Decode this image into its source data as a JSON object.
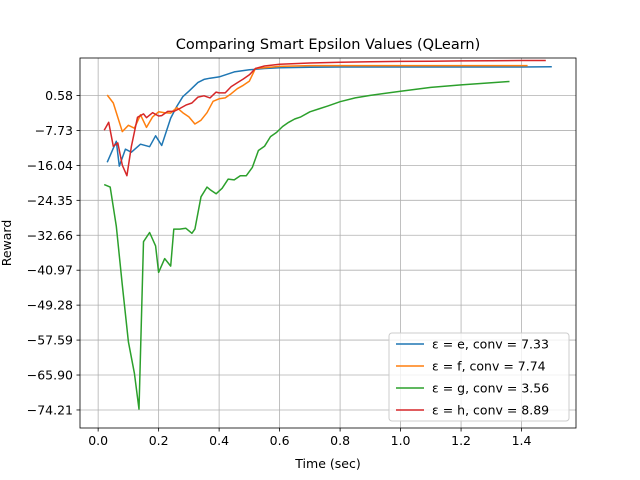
{
  "chart_data": {
    "type": "line",
    "title": "Comparing Smart Epsilon Values (QLearn)",
    "xlabel": "Time (sec)",
    "ylabel": "Reward",
    "xlim": [
      -0.06,
      1.58
    ],
    "ylim": [
      -78.5,
      9.5
    ],
    "xticks": [
      0.0,
      0.2,
      0.4,
      0.6,
      0.8,
      1.0,
      1.2,
      1.4
    ],
    "xtick_labels": [
      "0.0",
      "0.2",
      "0.4",
      "0.6",
      "0.8",
      "1.0",
      "1.2",
      "1.4"
    ],
    "yticks": [
      0.58,
      -7.73,
      -16.04,
      -24.35,
      -32.66,
      -40.97,
      -49.28,
      -57.59,
      -65.9,
      -74.21
    ],
    "ytick_labels": [
      "0.58",
      "−7.73",
      "−16.04",
      "−24.35",
      "−32.66",
      "−40.97",
      "−49.28",
      "−57.59",
      "−65.90",
      "−74.21"
    ],
    "grid": true,
    "legend_position": "lower-right",
    "series": [
      {
        "name": "ε = e, conv = 7.33",
        "color": "#1f77b4",
        "x": [
          0.03,
          0.06,
          0.07,
          0.09,
          0.11,
          0.14,
          0.17,
          0.19,
          0.21,
          0.24,
          0.26,
          0.28,
          0.3,
          0.33,
          0.35,
          0.37,
          0.4,
          0.45,
          0.5,
          0.55,
          0.6,
          0.7,
          0.8,
          0.9,
          1.0,
          1.1,
          1.2,
          1.3,
          1.4,
          1.5
        ],
        "y": [
          -15.3,
          -10.3,
          -16.2,
          -12.2,
          -12.9,
          -11.0,
          -11.6,
          -9.0,
          -11.3,
          -4.8,
          -2.0,
          0.3,
          1.6,
          3.7,
          4.4,
          4.7,
          5.0,
          6.2,
          6.7,
          7.0,
          7.2,
          7.3,
          7.35,
          7.35,
          7.35,
          7.35,
          7.35,
          7.35,
          7.35,
          7.4
        ]
      },
      {
        "name": "ε = f, conv = 7.74",
        "color": "#ff7f0e",
        "x": [
          0.03,
          0.05,
          0.08,
          0.1,
          0.12,
          0.14,
          0.16,
          0.18,
          0.2,
          0.22,
          0.24,
          0.26,
          0.28,
          0.3,
          0.32,
          0.34,
          0.36,
          0.38,
          0.4,
          0.42,
          0.44,
          0.46,
          0.48,
          0.5,
          0.52,
          0.55,
          0.6,
          0.7,
          0.8,
          0.9,
          1.0,
          1.1,
          1.2,
          1.3,
          1.42
        ],
        "y": [
          0.7,
          -1.2,
          -8.0,
          -6.5,
          -7.2,
          -4.0,
          -7.0,
          -4.5,
          -3.3,
          -3.5,
          -3.6,
          -2.3,
          -3.5,
          -4.5,
          -6.2,
          -5.3,
          -3.5,
          -0.8,
          -0.2,
          0.0,
          1.0,
          2.2,
          3.0,
          4.0,
          7.0,
          7.2,
          7.5,
          7.7,
          7.7,
          7.7,
          7.7,
          7.7,
          7.7,
          7.7,
          7.7
        ]
      },
      {
        "name": "ε = g, conv = 3.56",
        "color": "#2ca02c",
        "x": [
          0.02,
          0.04,
          0.06,
          0.08,
          0.1,
          0.12,
          0.135,
          0.15,
          0.17,
          0.19,
          0.2,
          0.22,
          0.24,
          0.25,
          0.27,
          0.29,
          0.31,
          0.32,
          0.34,
          0.36,
          0.37,
          0.39,
          0.41,
          0.43,
          0.45,
          0.47,
          0.49,
          0.51,
          0.53,
          0.55,
          0.57,
          0.59,
          0.61,
          0.63,
          0.65,
          0.67,
          0.7,
          0.73,
          0.76,
          0.8,
          0.85,
          0.9,
          1.0,
          1.1,
          1.2,
          1.3,
          1.36
        ],
        "y": [
          -20.6,
          -21.2,
          -30.5,
          -44.5,
          -58.0,
          -65.5,
          -74.0,
          -34.2,
          -32.0,
          -35.2,
          -41.5,
          -38.2,
          -40.0,
          -31.2,
          -31.2,
          -31.0,
          -32.2,
          -31.2,
          -23.5,
          -21.2,
          -21.8,
          -22.8,
          -21.5,
          -19.3,
          -19.5,
          -18.5,
          -18.5,
          -16.5,
          -12.5,
          -11.5,
          -9.2,
          -8.2,
          -6.8,
          -5.8,
          -5.0,
          -4.5,
          -3.3,
          -2.6,
          -1.9,
          -0.9,
          0.0,
          0.6,
          1.6,
          2.5,
          3.1,
          3.6,
          3.9
        ]
      },
      {
        "name": "ε = h, conv = 8.89",
        "color": "#d62728",
        "x": [
          0.02,
          0.035,
          0.05,
          0.065,
          0.08,
          0.095,
          0.11,
          0.13,
          0.15,
          0.16,
          0.18,
          0.2,
          0.21,
          0.23,
          0.25,
          0.27,
          0.29,
          0.31,
          0.33,
          0.35,
          0.37,
          0.39,
          0.4,
          0.42,
          0.44,
          0.46,
          0.48,
          0.5,
          0.52,
          0.55,
          0.6,
          0.7,
          0.8,
          0.9,
          1.0,
          1.1,
          1.2,
          1.3,
          1.4,
          1.48
        ],
        "y": [
          -7.7,
          -5.8,
          -11.5,
          -10.7,
          -16.0,
          -18.5,
          -11.5,
          -4.6,
          -3.8,
          -4.7,
          -3.5,
          -4.3,
          -4.2,
          -3.2,
          -3.2,
          -2.5,
          -1.7,
          -1.2,
          0.2,
          0.5,
          0.0,
          1.4,
          1.2,
          1.2,
          2.7,
          3.6,
          4.5,
          5.5,
          7.0,
          7.6,
          8.0,
          8.3,
          8.5,
          8.6,
          8.7,
          8.75,
          8.8,
          8.85,
          8.9,
          8.9
        ]
      }
    ]
  }
}
